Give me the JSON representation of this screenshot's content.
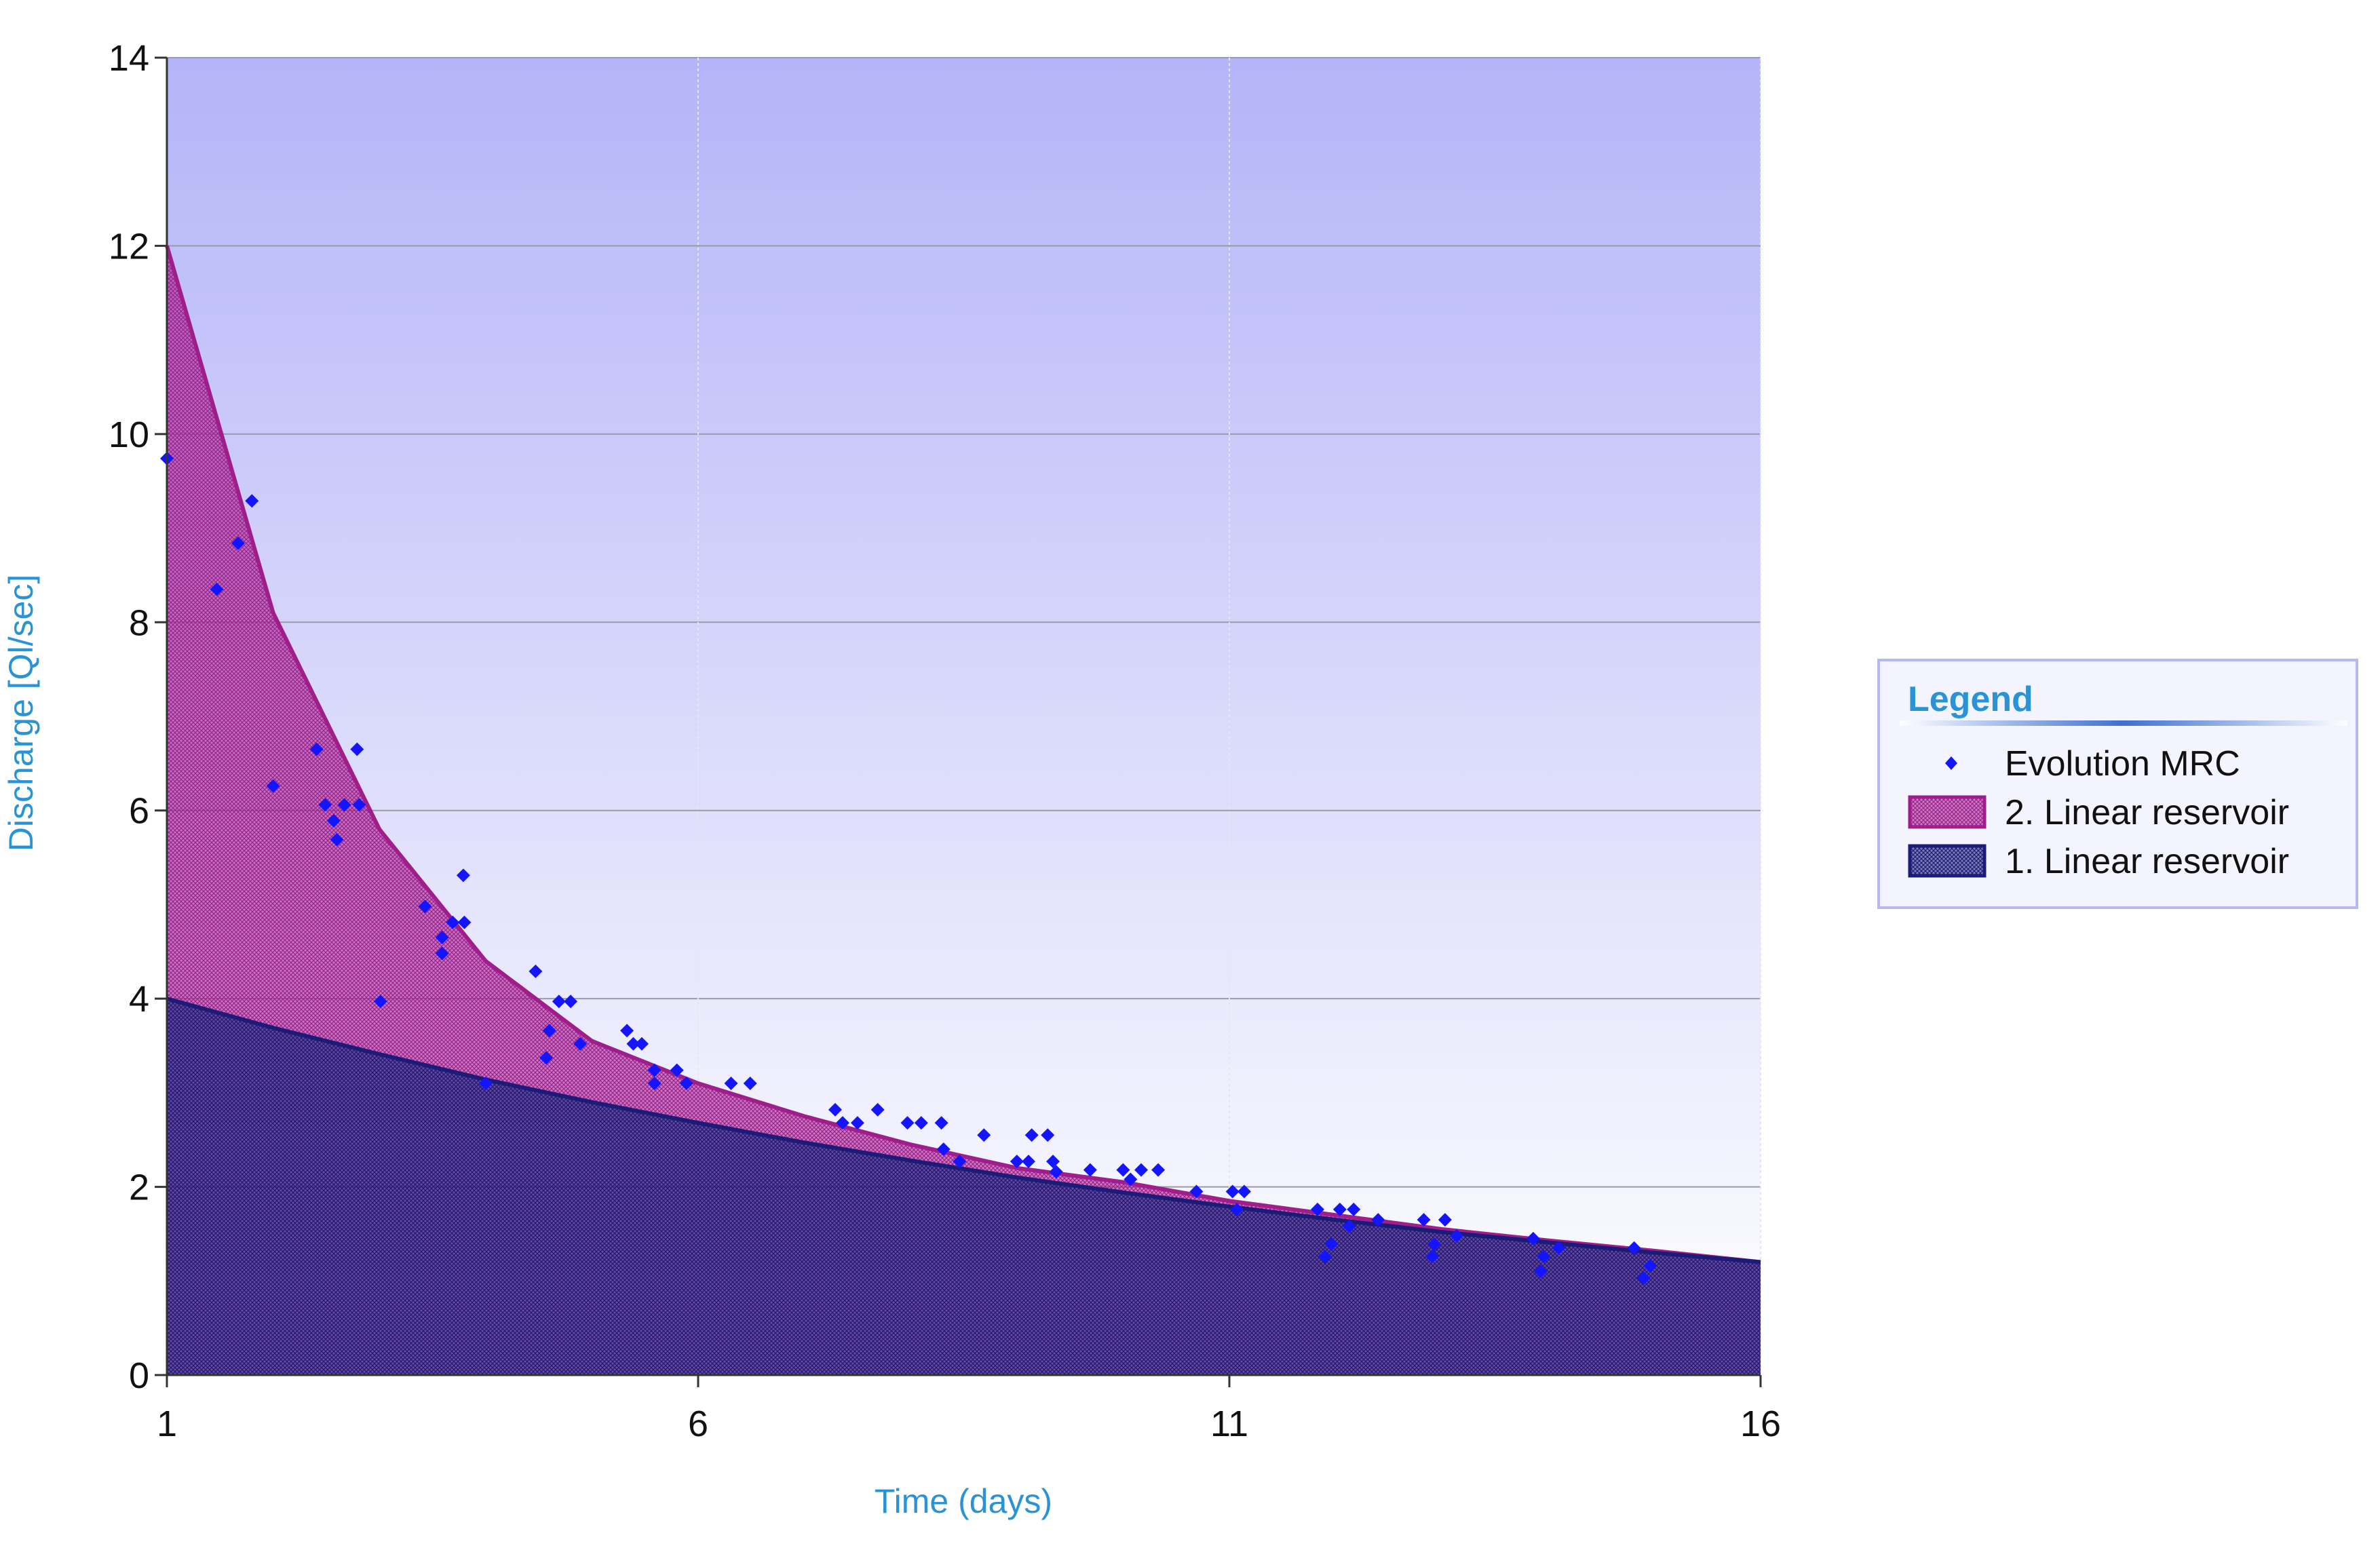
{
  "chart_data": {
    "type": "area",
    "x_label": "Time (days)",
    "y_label": "Discharge [Ql/sec]",
    "xlim": [
      1,
      16
    ],
    "xticks": [
      1,
      6,
      11,
      16
    ],
    "ylim": [
      0,
      14
    ],
    "yticks": [
      0,
      2,
      4,
      6,
      8,
      10,
      12,
      14
    ],
    "grid": true,
    "legend_title": "Legend",
    "legend_position": "right",
    "x": [
      1,
      2,
      3,
      4,
      5,
      6,
      7,
      8,
      9,
      10,
      11,
      12,
      13,
      14,
      15,
      16
    ],
    "series": [
      {
        "name": "Evolution MRC",
        "type": "scatter",
        "color": "#1414ff",
        "x": [
          1,
          1.47,
          1.67,
          1.8,
          2.0,
          2.41,
          2.49,
          2.57,
          2.6,
          2.67,
          2.79,
          2.81,
          3.01,
          3.43,
          3.59,
          3.59,
          3.69,
          3.79,
          3.8,
          4.0,
          4.47,
          4.57,
          4.6,
          4.69,
          4.8,
          4.89,
          5.33,
          5.39,
          5.47,
          5.59,
          5.59,
          5.8,
          5.89,
          6.31,
          6.49,
          7.29,
          7.36,
          7.5,
          7.69,
          7.97,
          8.1,
          8.29,
          8.31,
          8.46,
          8.69,
          9.0,
          9.11,
          9.14,
          9.29,
          9.34,
          9.37,
          9.69,
          10.0,
          10.07,
          10.17,
          10.33,
          10.69,
          11.03,
          11.07,
          11.14,
          11.83,
          11.9,
          11.96,
          12.04,
          12.13,
          12.17,
          12.4,
          12.83,
          12.91,
          12.93,
          13.03,
          13.14,
          13.86,
          13.93,
          13.96,
          14.1,
          14.81,
          14.9,
          14.96
        ],
        "values": [
          9.74,
          8.35,
          8.84,
          9.29,
          6.26,
          6.65,
          6.06,
          5.89,
          5.69,
          6.06,
          6.65,
          6.06,
          3.97,
          4.98,
          4.48,
          4.65,
          4.81,
          5.31,
          4.81,
          3.1,
          4.29,
          3.37,
          3.66,
          3.97,
          3.97,
          3.52,
          3.66,
          3.52,
          3.52,
          3.24,
          3.1,
          3.24,
          3.1,
          3.1,
          3.1,
          2.82,
          2.68,
          2.68,
          2.82,
          2.68,
          2.68,
          2.68,
          2.4,
          2.27,
          2.55,
          2.27,
          2.27,
          2.55,
          2.55,
          2.27,
          2.16,
          2.18,
          2.18,
          2.08,
          2.18,
          2.18,
          1.95,
          1.95,
          1.76,
          1.95,
          1.76,
          1.26,
          1.39,
          1.76,
          1.58,
          1.76,
          1.65,
          1.65,
          1.26,
          1.39,
          1.65,
          1.48,
          1.45,
          1.1,
          1.26,
          1.35,
          1.35,
          1.03,
          1.16
        ]
      },
      {
        "name": "2. Linear reservoir",
        "type": "area",
        "color": "#a01e8c",
        "values": [
          12,
          8.1,
          5.8,
          4.4,
          3.55,
          3.1,
          2.75,
          2.45,
          2.2,
          2.05,
          1.85,
          1.7,
          1.55,
          1.43,
          1.32,
          1.2
        ]
      },
      {
        "name": "1. Linear reservoir",
        "type": "area",
        "color": "#1c1c78",
        "values": [
          4,
          3.69,
          3.41,
          3.14,
          2.9,
          2.68,
          2.47,
          2.28,
          2.1,
          1.94,
          1.79,
          1.65,
          1.52,
          1.41,
          1.3,
          1.2
        ]
      }
    ]
  }
}
